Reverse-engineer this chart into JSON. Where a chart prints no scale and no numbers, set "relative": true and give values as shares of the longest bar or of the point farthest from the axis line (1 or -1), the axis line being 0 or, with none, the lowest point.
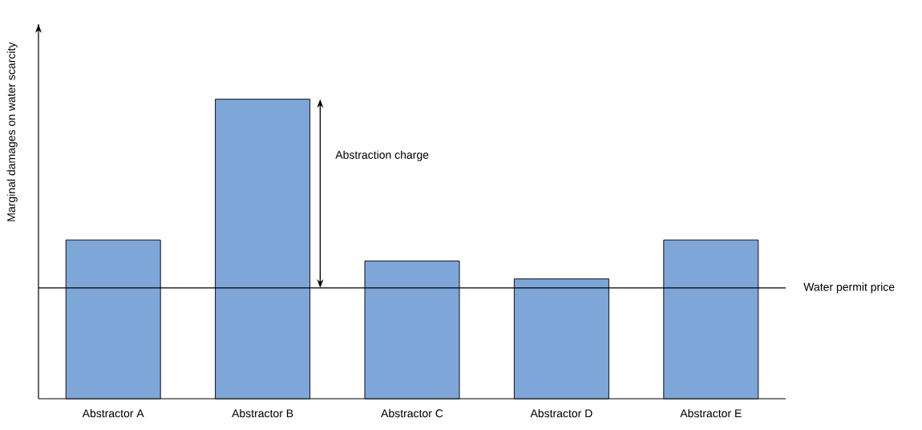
{
  "chart_data": {
    "type": "bar",
    "relative": true,
    "ylabel": "Marginal damages on water scarcity",
    "categories": [
      "Abstractor A",
      "Abstractor B",
      "Abstractor C",
      "Abstractor D",
      "Abstractor E"
    ],
    "values": [
      0.53,
      1,
      0.46,
      0.4,
      0.53
    ],
    "color": "#7ea6d8",
    "ref_lines": [
      {
        "axis": "y",
        "value": 0.37,
        "label": "Water permit price",
        "color": "#000000"
      }
    ],
    "annotations": [
      "Abstraction charge"
    ]
  }
}
